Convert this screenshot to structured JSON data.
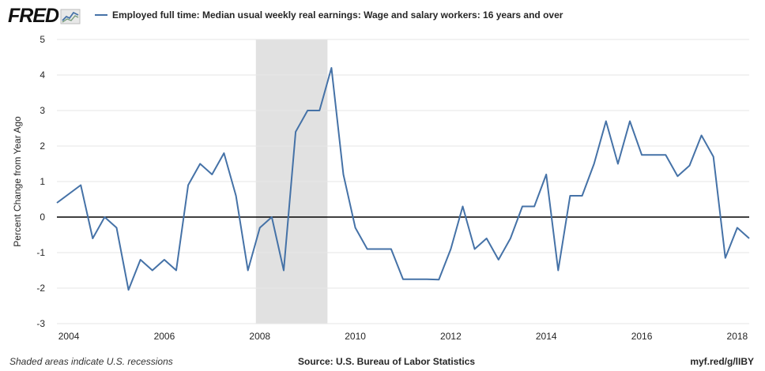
{
  "logo": {
    "text": "FRED"
  },
  "colors": {
    "series": "#4572a7",
    "recession": "#e1e1e1",
    "grid": "#e6e6e6",
    "zero_line": "#000000"
  },
  "footer": {
    "note": "Shaded areas indicate U.S. recessions",
    "source": "Source: U.S. Bureau of Labor Statistics",
    "url": "myf.red/g/lIBY"
  },
  "chart_data": {
    "type": "line",
    "title": "",
    "ylabel": "Percent Change from Year Ago",
    "xlabel": "",
    "ylim": [
      -3,
      5
    ],
    "xlim": [
      2003.75,
      2018.25
    ],
    "yticks": [
      "-3",
      "-2",
      "-1",
      "0",
      "1",
      "2",
      "3",
      "4",
      "5"
    ],
    "xticks": [
      "2004",
      "2006",
      "2008",
      "2010",
      "2012",
      "2014",
      "2016",
      "2018"
    ],
    "grid": true,
    "legend_position": "top-left",
    "recessions": [
      [
        2007.917,
        2009.417
      ]
    ],
    "series": [
      {
        "name": "Employed full time: Median usual weekly real earnings: Wage and salary workers: 16 years and over",
        "x": [
          2003.75,
          2004.25,
          2004.5,
          2004.75,
          2005.0,
          2005.25,
          2005.5,
          2005.75,
          2006.0,
          2006.25,
          2006.5,
          2006.75,
          2007.0,
          2007.25,
          2007.5,
          2007.75,
          2008.0,
          2008.25,
          2008.5,
          2008.75,
          2009.0,
          2009.25,
          2009.5,
          2009.75,
          2010.0,
          2010.25,
          2010.5,
          2010.75,
          2011.0,
          2011.25,
          2011.5,
          2011.75,
          2012.0,
          2012.25,
          2012.5,
          2012.75,
          2013.0,
          2013.25,
          2013.5,
          2013.75,
          2014.0,
          2014.25,
          2014.5,
          2014.75,
          2015.0,
          2015.25,
          2015.5,
          2015.75,
          2016.0,
          2016.25,
          2016.5,
          2016.75,
          2017.0,
          2017.25,
          2017.5,
          2017.75,
          2018.0,
          2018.25
        ],
        "y": [
          0.4,
          0.9,
          -0.6,
          0.0,
          -0.3,
          -2.05,
          -1.2,
          -1.5,
          -1.2,
          -1.5,
          0.9,
          1.5,
          1.2,
          1.8,
          0.6,
          -1.5,
          -0.3,
          0.0,
          -1.5,
          2.4,
          3.0,
          3.0,
          4.2,
          1.2,
          -0.3,
          -0.9,
          -0.9,
          -0.9,
          -1.75,
          -1.75,
          -1.75,
          -1.76,
          -0.9,
          0.3,
          -0.9,
          -0.6,
          -1.2,
          -0.6,
          0.3,
          0.3,
          1.2,
          -1.5,
          0.6,
          0.6,
          1.5,
          2.7,
          1.5,
          2.7,
          1.75,
          1.75,
          1.75,
          1.15,
          1.45,
          2.3,
          1.7,
          -1.15,
          -0.3,
          -0.6
        ]
      }
    ]
  }
}
